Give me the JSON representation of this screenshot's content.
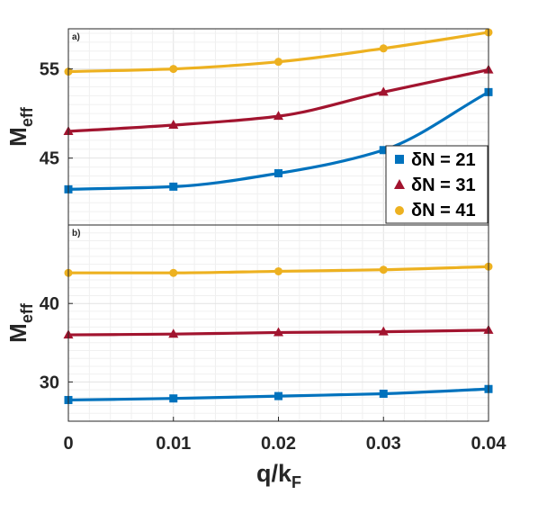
{
  "chart_data": [
    {
      "type": "line",
      "panel_label": "a)",
      "x": [
        0,
        0.01,
        0.02,
        0.03,
        0.04
      ],
      "xlim": [
        0,
        0.04
      ],
      "ylim": [
        37.5,
        59.5
      ],
      "yticks": [
        45,
        55
      ],
      "ytick_labels": [
        "45",
        "55"
      ],
      "ylabel": "M",
      "ylabel_sub": "eff",
      "grid": true,
      "legend_position": "bottom-right",
      "series": [
        {
          "name": "δN = 21",
          "color": "#0072BD",
          "marker": "square",
          "values": [
            41.5,
            41.8,
            43.3,
            45.9,
            52.4
          ]
        },
        {
          "name": "δN = 31",
          "color": "#A2142F",
          "marker": "triangle",
          "values": [
            48.0,
            48.7,
            49.7,
            52.4,
            54.9
          ]
        },
        {
          "name": "δN = 41",
          "color": "#EDB120",
          "marker": "circle",
          "values": [
            54.7,
            55.0,
            55.8,
            57.3,
            59.1
          ]
        }
      ]
    },
    {
      "type": "line",
      "panel_label": "b)",
      "x": [
        0,
        0.01,
        0.02,
        0.03,
        0.04
      ],
      "xlim": [
        0,
        0.04
      ],
      "ylim": [
        25,
        50
      ],
      "yticks": [
        30,
        40
      ],
      "ytick_labels": [
        "30",
        "40"
      ],
      "xticks": [
        0,
        0.01,
        0.02,
        0.03,
        0.04
      ],
      "xtick_labels": [
        "0",
        "0.01",
        "0.02",
        "0.03",
        "0.04"
      ],
      "xlabel": "q/k",
      "xlabel_sub": "F",
      "ylabel": "M",
      "ylabel_sub": "eff",
      "grid": true,
      "series": [
        {
          "name": "δN = 21",
          "color": "#0072BD",
          "marker": "square",
          "values": [
            27.7,
            27.9,
            28.2,
            28.5,
            29.1
          ]
        },
        {
          "name": "δN = 31",
          "color": "#A2142F",
          "marker": "triangle",
          "values": [
            36.0,
            36.1,
            36.3,
            36.4,
            36.6
          ]
        },
        {
          "name": "δN = 41",
          "color": "#EDB120",
          "marker": "circle",
          "values": [
            43.9,
            43.9,
            44.1,
            44.3,
            44.7
          ]
        }
      ]
    }
  ]
}
